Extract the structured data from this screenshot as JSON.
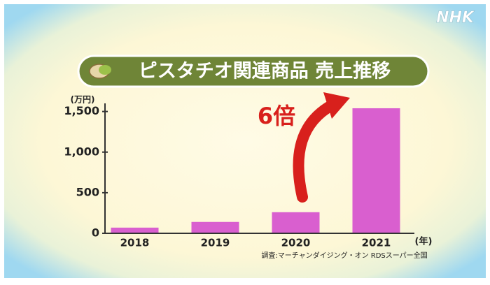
{
  "logo": "NHK",
  "chart_data": {
    "type": "bar",
    "title": "ピスタチオ関連商品 売上推移",
    "y_label": "(万円)",
    "x_label": "(年)",
    "annotation": "6倍",
    "source": "調査:マーチャンダイジング・オン RDSスーパー全国",
    "categories": [
      "2018",
      "2019",
      "2020",
      "2021"
    ],
    "values": [
      70,
      140,
      260,
      1540
    ],
    "color": "#d95fcf",
    "ylim": [
      0,
      1600
    ],
    "yticks": [
      0,
      500,
      {
        "value": 1000,
        "label": "1,000"
      },
      {
        "value": 1500,
        "label": "1,500"
      }
    ]
  }
}
